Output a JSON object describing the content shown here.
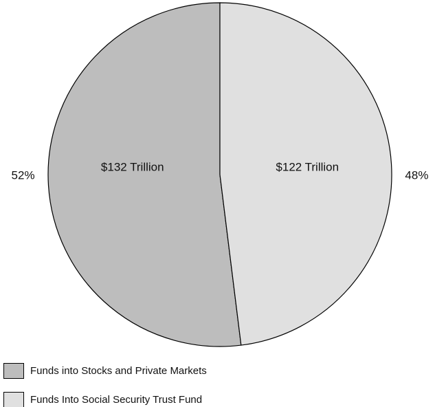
{
  "chart_data": {
    "type": "pie",
    "categories": [
      "Funds into Stocks and Private Markets",
      "Funds Into Social Security Trust Fund"
    ],
    "values": [
      132,
      122
    ],
    "value_labels": [
      "$132 Trillion",
      "$122 Trillion"
    ],
    "percent_labels": [
      "52%",
      "48%"
    ],
    "colors": [
      "#bdbdbd",
      "#e0e0e0"
    ],
    "legend": "bottom-left"
  }
}
